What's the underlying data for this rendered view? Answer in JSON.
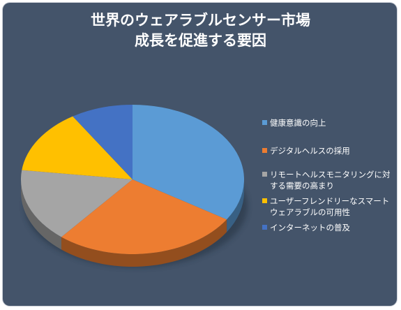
{
  "chart_data": {
    "type": "pie",
    "title_lines": [
      "世界のウェアラブルセンサー市場",
      "成長を促進する要因"
    ],
    "legend_position": "right",
    "slices": [
      {
        "label": "健康意識の向上",
        "value": 34,
        "color": "#5b9bd5"
      },
      {
        "label": "デジタルヘルスの採用",
        "value": 27,
        "color": "#ed7d31"
      },
      {
        "label": "リモートヘルスモニタリングに対する需要の高まり",
        "value": 16,
        "color": "#a5a5a5"
      },
      {
        "label": "ユーザーフレンドリーなスマートウェアラブルの可用性",
        "value": 14,
        "color": "#ffc000"
      },
      {
        "label": "インターネットの普及",
        "value": 9,
        "color": "#4472c4"
      }
    ]
  }
}
